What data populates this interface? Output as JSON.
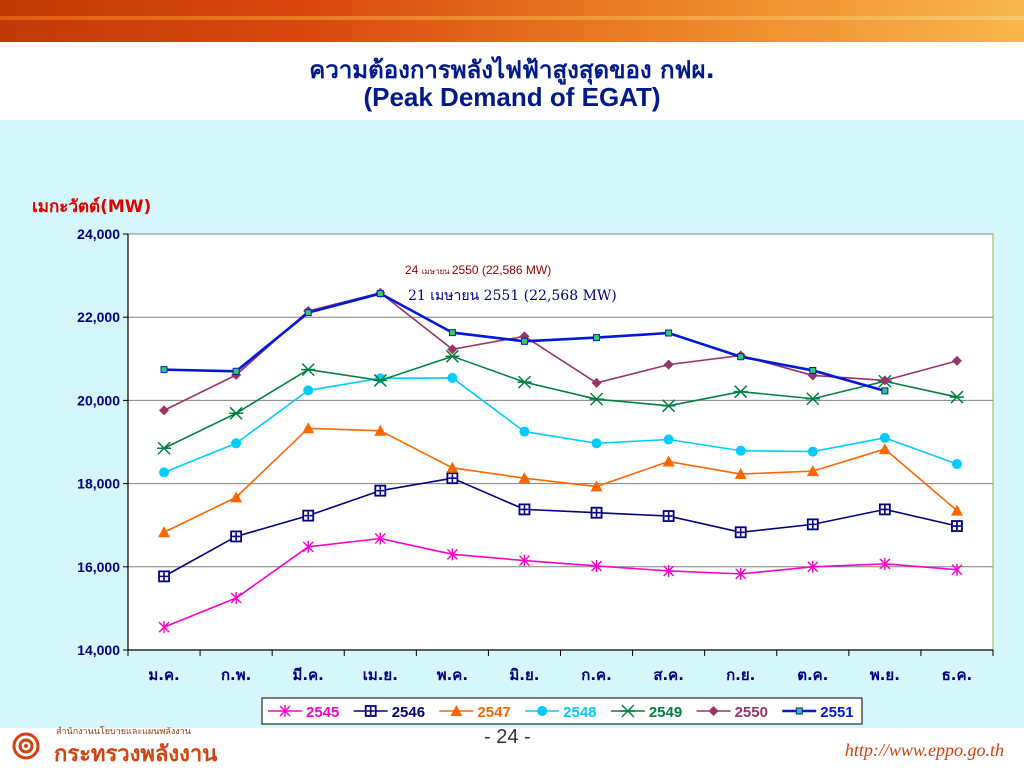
{
  "header": {
    "title_th": "ความต้องการพลังไฟฟ้าสูงสุดของ กฟผ.",
    "title_en": "(Peak Demand of EGAT)"
  },
  "footer": {
    "org_small": "สำนักงานนโยบายและแผนพลังงาน",
    "org_name": "กระทรวงพลังงาน",
    "page_number": "- 24 -",
    "url": "http://www.eppo.go.th",
    "logo_icon": "ministry-logo-icon"
  },
  "chart_data": {
    "type": "line",
    "title": "ความต้องการพลังไฟฟ้าสูงสุดของ กฟผ. (Peak Demand of EGAT)",
    "ylabel": "เมกะวัตต์(MW)",
    "xlabel": "",
    "ylim": [
      14000,
      24000
    ],
    "yticks": [
      14000,
      16000,
      18000,
      20000,
      22000,
      24000
    ],
    "ytick_labels": [
      "14,000",
      "16,000",
      "18,000",
      "20,000",
      "22,000",
      "24,000"
    ],
    "grid": true,
    "legend_position": "bottom",
    "categories": [
      "ม.ค.",
      "ก.พ.",
      "มี.ค.",
      "เม.ย.",
      "พ.ค.",
      "มิ.ย.",
      "ก.ค.",
      "ส.ค.",
      "ก.ย.",
      "ต.ค.",
      "พ.ย.",
      "ธ.ค."
    ],
    "series": [
      {
        "name": "2545",
        "color": "#ff00cc",
        "marker": "asterisk",
        "values": [
          14550,
          15250,
          16480,
          16680,
          16300,
          16150,
          16020,
          15900,
          15830,
          16000,
          16070,
          15930
        ]
      },
      {
        "name": "2546",
        "color": "#000080",
        "marker": "square-plus",
        "values": [
          15770,
          16730,
          17230,
          17830,
          18130,
          17380,
          17300,
          17220,
          16830,
          17020,
          17380,
          16980
        ]
      },
      {
        "name": "2547",
        "color": "#ff6600",
        "marker": "triangle",
        "values": [
          16830,
          17670,
          19330,
          19270,
          18380,
          18130,
          17930,
          18530,
          18230,
          18300,
          18830,
          17350
        ]
      },
      {
        "name": "2548",
        "color": "#00ccff",
        "marker": "circle",
        "values": [
          18270,
          18970,
          20240,
          20530,
          20540,
          19250,
          18970,
          19060,
          18790,
          18770,
          19100,
          18470
        ]
      },
      {
        "name": "2549",
        "color": "#008040",
        "marker": "star",
        "values": [
          18850,
          19690,
          20740,
          20480,
          21060,
          20440,
          20030,
          19870,
          20210,
          20040,
          20460,
          20080
        ]
      },
      {
        "name": "2550",
        "color": "#993366",
        "marker": "diamond",
        "values": [
          19760,
          20610,
          22150,
          22586,
          21230,
          21540,
          20420,
          20860,
          21080,
          20600,
          20480,
          20950
        ]
      },
      {
        "name": "2551",
        "color": "#0018d8",
        "marker": "small-square",
        "values": [
          20740,
          20700,
          22110,
          22568,
          21630,
          21420,
          21510,
          21620,
          21050,
          20720,
          20230,
          null
        ]
      }
    ],
    "annotations": [
      {
        "text_date": "24",
        "text_month": "เมษายน",
        "text_rest": "2550  (22,586 MW)",
        "color": "#8b0000"
      },
      {
        "text": "21 เมษายน  2551  (22,568 MW)",
        "color": "#000080"
      }
    ]
  }
}
